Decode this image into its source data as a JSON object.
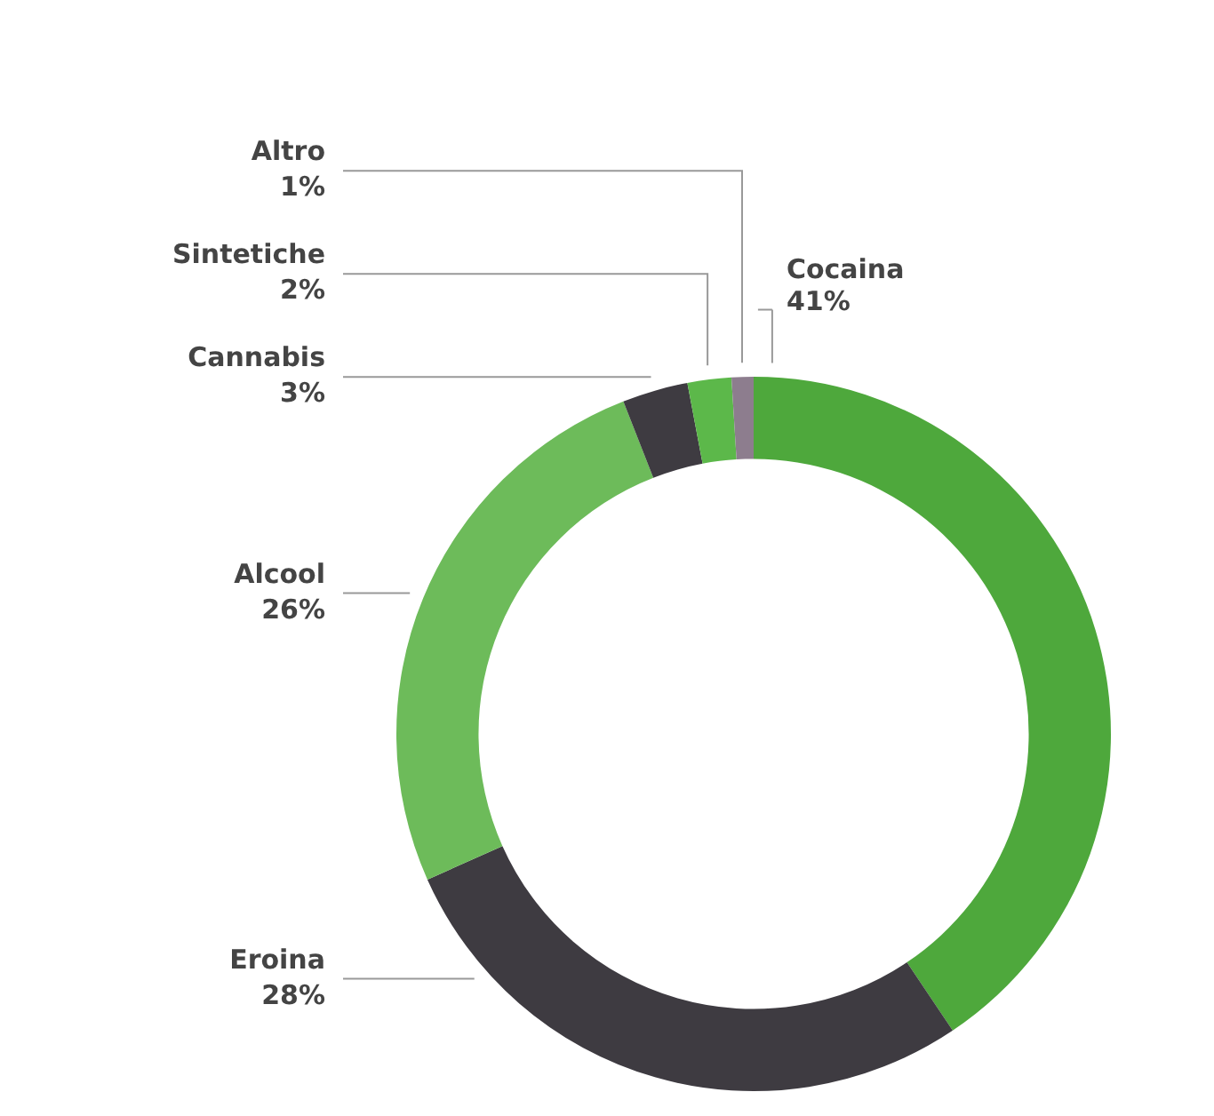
{
  "chart_data": {
    "type": "donut",
    "categories": [
      "Cocaina",
      "Eroina",
      "Alcool",
      "Cannabis",
      "Sintetiche",
      "Altro"
    ],
    "values": [
      41,
      28,
      26,
      3,
      2,
      1
    ],
    "value_labels": [
      "41%",
      "28%",
      "26%",
      "3%",
      "2%",
      "1%"
    ],
    "colors": [
      "#4ea83c",
      "#3e3b41",
      "#6dbb5a",
      "#3e3b41",
      "#5cb84a",
      "#8d7d8e"
    ]
  }
}
